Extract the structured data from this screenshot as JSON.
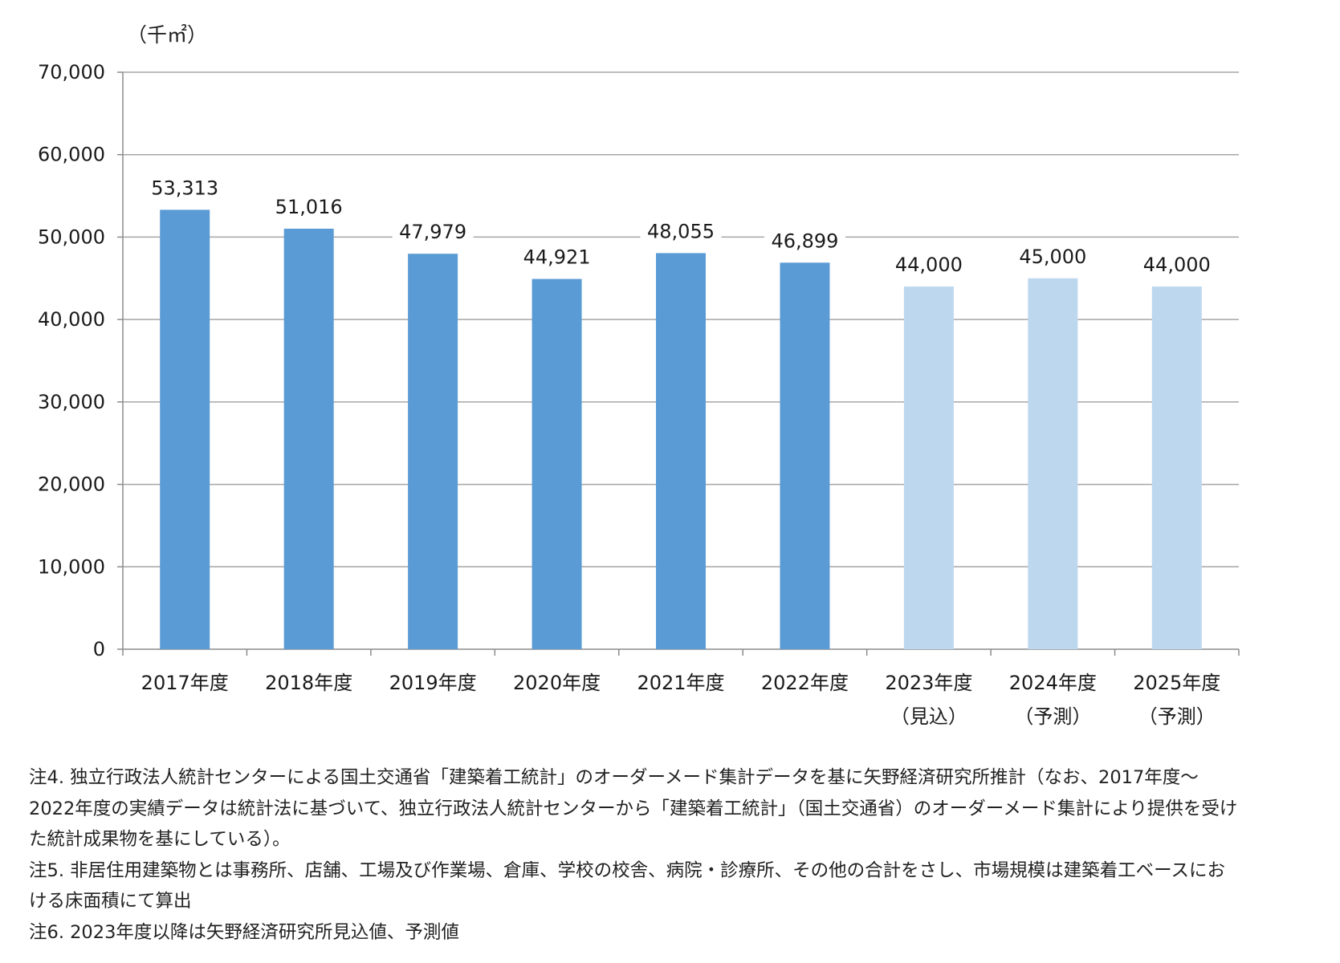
{
  "chart_data": {
    "type": "bar",
    "unit_label": "（千㎡）",
    "categories": [
      "2017年度",
      "2018年度",
      "2019年度",
      "2020年度",
      "2021年度",
      "2022年度",
      "2023年度",
      "2024年度",
      "2025年度"
    ],
    "category_sublabels": [
      "",
      "",
      "",
      "",
      "",
      "",
      "（見込）",
      "（予測）",
      "（予測）"
    ],
    "values": [
      53313,
      51016,
      47979,
      44921,
      48055,
      46899,
      44000,
      45000,
      44000
    ],
    "value_labels": [
      "53,313",
      "51,016",
      "47,979",
      "44,921",
      "48,055",
      "46,899",
      "44,000",
      "45,000",
      "44,000"
    ],
    "bar_kinds": [
      "actual",
      "actual",
      "actual",
      "actual",
      "actual",
      "actual",
      "estimate",
      "forecast",
      "forecast"
    ],
    "colors": {
      "actual": "#5b9bd5",
      "estimate": "#bdd7ee",
      "forecast": "#bdd7ee",
      "grid": "#a6a6a6",
      "axis": "#8c8c8c"
    },
    "ylim": [
      0,
      70000
    ],
    "yticks": [
      0,
      10000,
      20000,
      30000,
      40000,
      50000,
      60000,
      70000
    ],
    "ytick_labels": [
      "0",
      "10,000",
      "20,000",
      "30,000",
      "40,000",
      "50,000",
      "60,000",
      "70,000"
    ],
    "grid": true,
    "title": "",
    "xlabel": "",
    "ylabel": ""
  },
  "notes": [
    "注4. 独立行政法人統計センターによる国土交通省「建築着工統計」のオーダーメード集計データを基に矢野経済研究所推計（なお、2017年度～",
    "2022年度の実績データは統計法に基づいて、独立行政法人統計センターから「建築着工統計」（国土交通省）のオーダーメード集計により提供を受け",
    "た統計成果物を基にしている）。",
    "注5. 非居住用建築物とは事務所、店舗、工場及び作業場、倉庫、学校の校舎、病院・診療所、その他の合計をさし、市場規模は建築着工ベースにお",
    "ける床面積にて算出",
    "注6. 2023年度以降は矢野経済研究所見込値、予測値"
  ]
}
